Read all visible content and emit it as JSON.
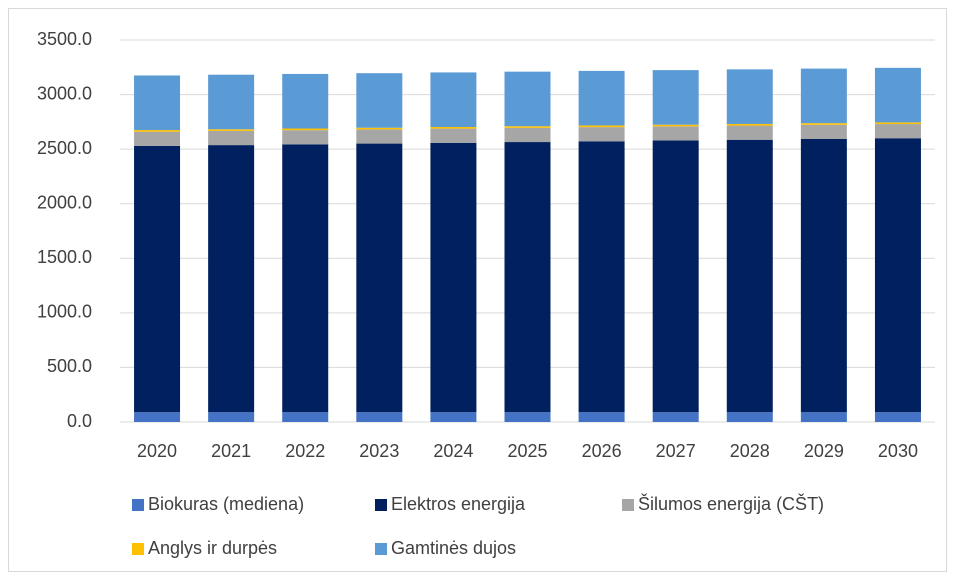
{
  "chart_data": {
    "type": "stacked_bar",
    "categories": [
      "2020",
      "2021",
      "2022",
      "2023",
      "2024",
      "2025",
      "2026",
      "2027",
      "2028",
      "2029",
      "2030"
    ],
    "series": [
      {
        "name": "Biokuras (mediena)",
        "color": "#4472c4",
        "values": [
          90,
          90,
          90,
          90,
          90,
          90,
          90,
          90,
          90,
          90,
          90
        ]
      },
      {
        "name": "Elektros energija",
        "color": "#002060",
        "values": [
          2440,
          2447,
          2454,
          2461,
          2468,
          2475,
          2482,
          2489,
          2496,
          2503,
          2510
        ]
      },
      {
        "name": "Šilumos energija (CŠT)",
        "color": "#a6a6a6",
        "values": [
          130,
          130,
          130,
          130,
          130,
          130,
          130,
          130,
          130,
          130,
          130
        ]
      },
      {
        "name": "Anglys ir durpės",
        "color": "#ffc000",
        "values": [
          15,
          15,
          15,
          15,
          15,
          15,
          15,
          15,
          15,
          15,
          15
        ]
      },
      {
        "name": "Gamtinės dujos",
        "color": "#5b9bd5",
        "values": [
          500,
          500,
          500,
          500,
          500,
          500,
          500,
          500,
          500,
          500,
          500
        ]
      }
    ],
    "ylim": [
      0,
      3500
    ],
    "yticks": [
      {
        "value": 0,
        "label": "0.0"
      },
      {
        "value": 500,
        "label": "500.0"
      },
      {
        "value": 1000,
        "label": "1000.0"
      },
      {
        "value": 1500,
        "label": "1500.0"
      },
      {
        "value": 2000,
        "label": "2000.0"
      },
      {
        "value": 2500,
        "label": "2500.0"
      },
      {
        "value": 3000,
        "label": "3000.0"
      },
      {
        "value": 3500,
        "label": "3500.0"
      }
    ],
    "grid": true
  }
}
